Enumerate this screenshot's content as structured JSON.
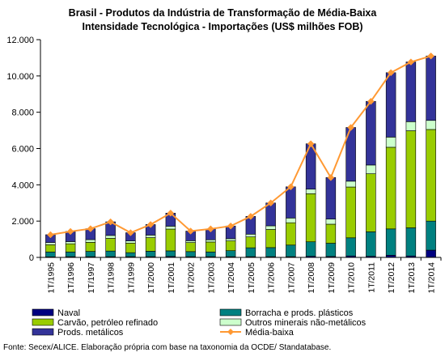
{
  "chart_data": {
    "type": "bar",
    "title": "Brasil - Produtos da Indústria de Transformação de Média-Baixa",
    "subtitle": "Intensidade Tecnológica - Importações (US$ milhões FOB)",
    "xlabel": "",
    "ylabel": "",
    "ylim": [
      0,
      12000
    ],
    "yticks": [
      "0",
      "2.000",
      "4.000",
      "6.000",
      "8.000",
      "10.000",
      "12.000"
    ],
    "ytick_values": [
      0,
      2000,
      4000,
      6000,
      8000,
      10000,
      12000
    ],
    "grid": false,
    "legend_position": "bottom",
    "categories": [
      "1T/1995",
      "1T/1996",
      "1T/1997",
      "1T/1998",
      "1T/1999",
      "1T/2000",
      "1T/2001",
      "1T/2002",
      "1T/2003",
      "1T/2004",
      "1T/2005",
      "1T/2006",
      "1T/2007",
      "1T/2008",
      "1T/2009",
      "1T/2010",
      "1T/2011",
      "1T/2012",
      "1T/2013",
      "1T/2014"
    ],
    "series": [
      {
        "name": "Naval",
        "kind": "stacked-bar",
        "color": "#000080",
        "values": [
          30,
          40,
          40,
          40,
          40,
          40,
          50,
          40,
          40,
          40,
          40,
          40,
          40,
          60,
          50,
          80,
          60,
          120,
          80,
          400
        ]
      },
      {
        "name": "Borracha e prods. plásticos",
        "kind": "stacked-bar",
        "color": "#008080",
        "values": [
          270,
          260,
          290,
          310,
          220,
          300,
          310,
          280,
          260,
          330,
          490,
          500,
          640,
          800,
          730,
          1000,
          1350,
          1450,
          1550,
          1600
        ]
      },
      {
        "name": "Carvão, petróleo refinado",
        "kind": "stacked-bar",
        "color": "#99CC00",
        "values": [
          400,
          450,
          500,
          700,
          530,
          750,
          1200,
          500,
          550,
          540,
          600,
          1000,
          1230,
          2650,
          1050,
          2800,
          3200,
          4500,
          5350,
          5050
        ]
      },
      {
        "name": "Outros minerais não-metálicos",
        "kind": "stacked-bar",
        "color": "#CCFFCC",
        "values": [
          120,
          120,
          150,
          160,
          120,
          140,
          160,
          100,
          120,
          120,
          150,
          200,
          260,
          250,
          280,
          320,
          480,
          560,
          500,
          500
        ]
      },
      {
        "name": "Prods. metálicos",
        "kind": "stacked-bar",
        "color": "#333399",
        "values": [
          430,
          560,
          600,
          750,
          450,
          580,
          720,
          530,
          600,
          700,
          980,
          1260,
          1720,
          2500,
          2290,
          2960,
          3510,
          3550,
          3290,
          3550
        ]
      },
      {
        "name": "Média-baixa",
        "kind": "line",
        "color": "#FF9933",
        "values": [
          1250,
          1430,
          1580,
          1960,
          1360,
          1810,
          2440,
          1450,
          1570,
          1730,
          2260,
          3000,
          3890,
          6260,
          4400,
          7160,
          8600,
          10180,
          10770,
          11100
        ]
      }
    ]
  },
  "source_note": "Fonte: Secex/ALICE. Elaboração própria com base na taxonomia da OCDE/ Standatabase."
}
